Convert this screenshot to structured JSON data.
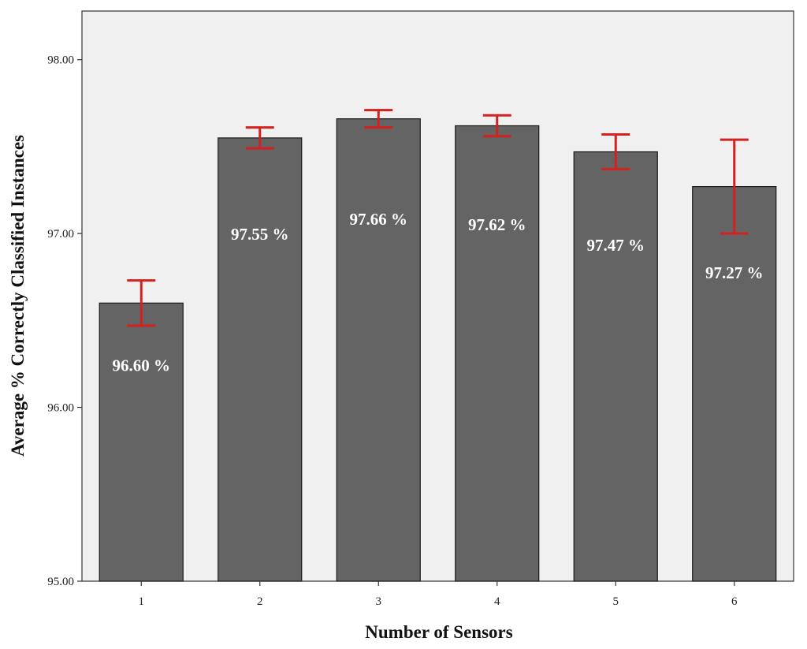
{
  "chart_data": {
    "type": "bar",
    "categories": [
      "1",
      "2",
      "3",
      "4",
      "5",
      "6"
    ],
    "values": [
      96.6,
      97.55,
      97.66,
      97.62,
      97.47,
      97.27
    ],
    "value_labels": [
      "96.60 %",
      "97.55 %",
      "97.66 %",
      "97.62 %",
      "97.47 %",
      "97.27 %"
    ],
    "error_bars": [
      {
        "low": 96.47,
        "high": 96.73
      },
      {
        "low": 97.49,
        "high": 97.61
      },
      {
        "low": 97.61,
        "high": 97.71
      },
      {
        "low": 97.56,
        "high": 97.68
      },
      {
        "low": 97.37,
        "high": 97.57
      },
      {
        "low": 97.0,
        "high": 97.54
      }
    ],
    "xlabel": "Number of Sensors",
    "ylabel": "Average % Correctly Classified Instances",
    "ylim": [
      95.0,
      98.28
    ],
    "yticks": [
      95.0,
      96.0,
      97.0,
      98.0
    ],
    "ytick_labels": [
      "95.00",
      "96.00",
      "97.00",
      "98.00"
    ],
    "grid": false,
    "colors": {
      "bar": "#646464",
      "bar_edge": "#1a1a1a",
      "error_bar": "#d42020",
      "plot_background": "#f0f0f0",
      "bar_label": "#ffffff"
    }
  }
}
